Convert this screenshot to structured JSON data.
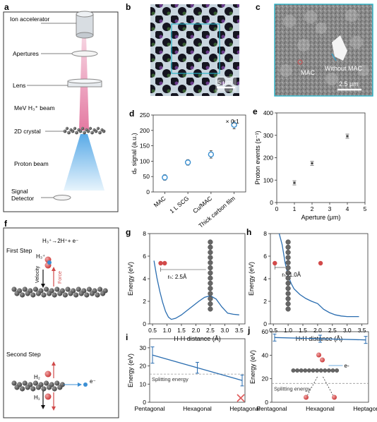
{
  "panels": {
    "a": {
      "letter": "a",
      "labels": {
        "ion_accelerator": "Ion accelerator",
        "apertures": "Apertures",
        "lens": "Lens",
        "beam": "MeV H₃⁺ beam",
        "crystal": "2D crystal",
        "proton_beam": "Proton beam",
        "detector_1": "Signal",
        "detector_2": "Detector"
      }
    },
    "b": {
      "letter": "b",
      "scale_bar": "5 μm"
    },
    "c": {
      "letter": "c",
      "mac_label": "MAC",
      "without_mac_label": "Without MAC",
      "scale_bar": "2.5 μm"
    },
    "f": {
      "letter": "f",
      "first_step": "First Step",
      "reaction": "H₃⁺→2H⁺+ e⁻",
      "h3_label": "H₃⁺",
      "velocity_label": "Velocity",
      "force_label": "Force",
      "second_step": "Second Step",
      "h2_label": "H₂",
      "h_label": "H₁",
      "electron_label": "e⁻"
    },
    "g_annotation": "rₕ: 2.5Å",
    "h_annotation": "rₕ: 1.0Å",
    "i_threshold_label": "Splitting energy",
    "j_threshold_label": "Splitting energy",
    "j_electron_label": "e-"
  },
  "chart_data": [
    {
      "id": "d",
      "letter": "d",
      "type": "scatter",
      "xlabel": "",
      "ylabel": "dₚ signal (a.u.)",
      "categories": [
        "MAC",
        "1 L SCG",
        "Cu/MAC",
        "Thick carbon film"
      ],
      "values": [
        47,
        96,
        122,
        218
      ],
      "errors": [
        9,
        9,
        12,
        13
      ],
      "ylim": [
        0,
        250
      ],
      "yticks": [
        0,
        50,
        100,
        150,
        200,
        250
      ],
      "annotation": "× 0.1",
      "color": "#3a8fd0"
    },
    {
      "id": "e",
      "letter": "e",
      "type": "scatter",
      "xlabel": "Aperture (μm)",
      "ylabel": "Proton events (s⁻¹)",
      "x": [
        1,
        2,
        4
      ],
      "y": [
        88,
        175,
        296
      ],
      "xlim": [
        0,
        5
      ],
      "xticks": [
        0,
        1,
        2,
        3,
        4,
        5
      ],
      "ylim": [
        0,
        400
      ],
      "yticks": [
        0,
        100,
        200,
        300,
        400
      ],
      "color": "#444444"
    },
    {
      "id": "g",
      "letter": "g",
      "type": "line",
      "xlabel": "H-H distance (Å)",
      "ylabel": "Energy (eV)",
      "x": [
        0.55,
        0.65,
        0.75,
        0.85,
        0.95,
        1.05,
        1.15,
        1.3,
        1.5,
        1.7,
        1.9,
        2.1,
        2.3,
        2.5,
        2.7,
        2.9,
        3.1,
        3.3,
        3.5
      ],
      "y": [
        5.6,
        4.1,
        2.9,
        1.9,
        1.1,
        0.6,
        0.4,
        0.5,
        0.8,
        1.2,
        1.6,
        2.0,
        2.35,
        2.5,
        2.2,
        1.5,
        0.95,
        0.85,
        0.8
      ],
      "xlim": [
        0.4,
        3.7
      ],
      "xticks": [
        0.5,
        1.0,
        1.5,
        2.0,
        2.5,
        3.0,
        3.5
      ],
      "ylim": [
        0,
        8
      ],
      "yticks": [
        0,
        2,
        4,
        6,
        8
      ],
      "color": "#2a6db0"
    },
    {
      "id": "h",
      "letter": "h",
      "type": "line",
      "xlabel": "H-H distance (Å)",
      "ylabel": "Energy (eV)",
      "x": [
        0.7,
        0.8,
        0.9,
        1.0,
        1.1,
        1.2,
        1.4,
        1.6,
        1.8,
        2.0,
        2.2,
        2.4,
        2.6,
        2.8,
        3.0,
        3.2,
        3.4
      ],
      "y": [
        8.0,
        7.0,
        5.4,
        4.3,
        3.6,
        3.1,
        2.6,
        2.25,
        2.0,
        1.8,
        1.3,
        1.0,
        0.8,
        0.7,
        0.65,
        0.65,
        0.65
      ],
      "xlim": [
        0.4,
        3.7
      ],
      "xticks": [
        0.5,
        1.0,
        1.5,
        2.0,
        2.5,
        3.0,
        3.5
      ],
      "ylim": [
        0,
        8
      ],
      "yticks": [
        0,
        2,
        4,
        6,
        8
      ],
      "color": "#2a6db0"
    },
    {
      "id": "i",
      "letter": "i",
      "type": "line",
      "xlabel": "",
      "ylabel": "Energy (eV)",
      "categories": [
        "Pentagonal",
        "Hexagonal",
        "Heptagonal"
      ],
      "values": [
        26,
        19,
        12
      ],
      "errors": [
        4.5,
        3,
        3
      ],
      "threshold": 15.5,
      "ylim": [
        0,
        35
      ],
      "yticks": [
        0,
        10,
        20,
        30
      ],
      "color": "#2a6db0"
    },
    {
      "id": "j",
      "letter": "j",
      "type": "line",
      "xlabel": "",
      "ylabel": "Energy (eV)",
      "categories": [
        "Pentagonal",
        "Hexagonal",
        "Heptagonal"
      ],
      "values": [
        55,
        54,
        53
      ],
      "errors": [
        3,
        3,
        3
      ],
      "threshold": 16,
      "ylim": [
        0,
        60
      ],
      "yticks": [
        0,
        20,
        40,
        60
      ],
      "color": "#2a6db0"
    }
  ]
}
